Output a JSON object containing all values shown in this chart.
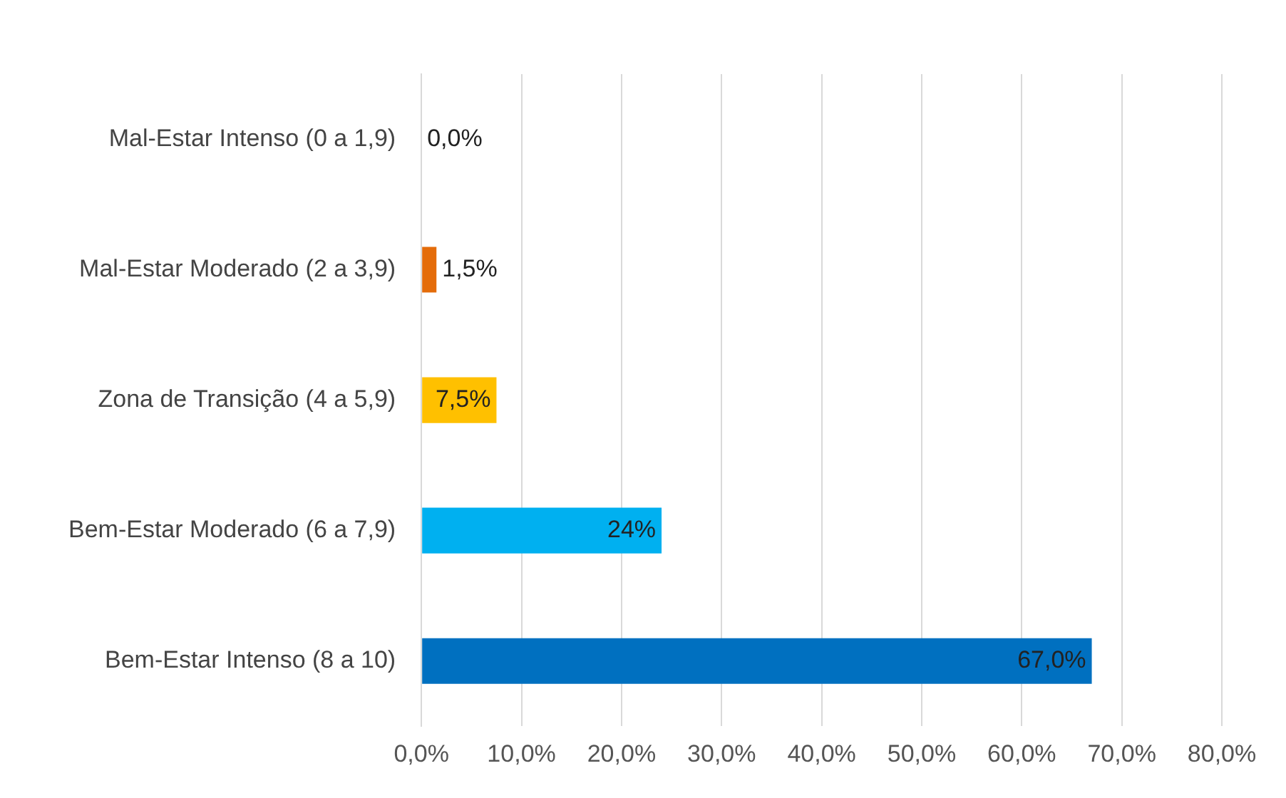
{
  "chart_data": {
    "type": "bar",
    "orientation": "horizontal",
    "categories": [
      "Mal-Estar Intenso (0 a 1,9)",
      "Mal-Estar Moderado (2 a 3,9)",
      "Zona de Transição (4 a 5,9)",
      "Bem-Estar Moderado (6 a 7,9)",
      "Bem-Estar Intenso (8 a 10)"
    ],
    "values": [
      0,
      1.5,
      7.5,
      24,
      67
    ],
    "colors": [
      "#c00000",
      "#e46c0a",
      "#ffc000",
      "#00b0f0",
      "#0070c0"
    ],
    "value_labels": [
      "0,0%",
      "1,5%",
      "7,5%",
      "24%",
      "67,0%"
    ],
    "xlim": [
      0,
      80
    ],
    "xticks": [
      {
        "value": 0,
        "label": "0,0%"
      },
      {
        "value": 10,
        "label": "10,0%"
      },
      {
        "value": 20,
        "label": "20,0%"
      },
      {
        "value": 30,
        "label": "30,0%"
      },
      {
        "value": 40,
        "label": "40,0%"
      },
      {
        "value": 50,
        "label": "50,0%"
      },
      {
        "value": 60,
        "label": "60,0%"
      },
      {
        "value": 70,
        "label": "70,0%"
      },
      {
        "value": 80,
        "label": "80,0%"
      }
    ],
    "grid": "x",
    "legend": false
  }
}
